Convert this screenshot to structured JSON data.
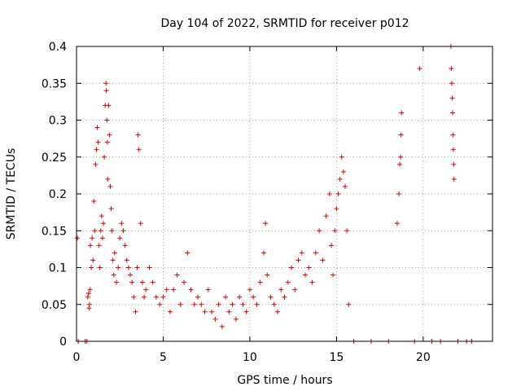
{
  "chart_data": {
    "type": "scatter",
    "title": "Day 104 of 2022, SRMTID for receiver p012",
    "xlabel": "GPS time / hours",
    "ylabel": "SRMTID / TECUs",
    "xlim": [
      0,
      24
    ],
    "ylim": [
      0,
      0.4
    ],
    "grid": true,
    "marker": "+",
    "color": "#e00000",
    "x_ticks": [
      0,
      5,
      10,
      15,
      20
    ],
    "x_tick_labels": [
      "0",
      "5",
      "10",
      "15",
      "20"
    ],
    "y_ticks": [
      0,
      0.05,
      0.1,
      0.15,
      0.2,
      0.25,
      0.3,
      0.35,
      0.4
    ],
    "y_tick_labels": [
      "0",
      "0.05",
      "0.1",
      "0.15",
      "0.2",
      "0.25",
      "0.3",
      "0.35",
      "0.4"
    ],
    "series": [
      {
        "name": "SRMTID",
        "points": [
          [
            0.05,
            0.14
          ],
          [
            0.1,
            0
          ],
          [
            0.5,
            0
          ],
          [
            0.6,
            0
          ],
          [
            0.65,
            0.06
          ],
          [
            0.7,
            0.065
          ],
          [
            0.72,
            0.045
          ],
          [
            0.75,
            0.05
          ],
          [
            0.78,
            0.07
          ],
          [
            0.8,
            0.13
          ],
          [
            0.85,
            0.1
          ],
          [
            0.9,
            0.14
          ],
          [
            0.95,
            0.11
          ],
          [
            1.0,
            0.19
          ],
          [
            1.05,
            0.15
          ],
          [
            1.1,
            0.24
          ],
          [
            1.15,
            0.26
          ],
          [
            1.2,
            0.29
          ],
          [
            1.25,
            0.27
          ],
          [
            1.3,
            0.13
          ],
          [
            1.35,
            0.1
          ],
          [
            1.4,
            0.15
          ],
          [
            1.45,
            0.17
          ],
          [
            1.5,
            0.14
          ],
          [
            1.55,
            0.16
          ],
          [
            1.6,
            0.25
          ],
          [
            1.65,
            0.32
          ],
          [
            1.7,
            0.35
          ],
          [
            1.72,
            0.34
          ],
          [
            1.75,
            0.3
          ],
          [
            1.78,
            0.27
          ],
          [
            1.8,
            0.22
          ],
          [
            1.85,
            0.32
          ],
          [
            1.9,
            0.28
          ],
          [
            1.95,
            0.21
          ],
          [
            2.0,
            0.18
          ],
          [
            2.05,
            0.15
          ],
          [
            2.1,
            0.11
          ],
          [
            2.15,
            0.09
          ],
          [
            2.2,
            0.12
          ],
          [
            2.3,
            0.08
          ],
          [
            2.4,
            0.1
          ],
          [
            2.5,
            0.14
          ],
          [
            2.6,
            0.16
          ],
          [
            2.7,
            0.15
          ],
          [
            2.8,
            0.13
          ],
          [
            2.9,
            0.11
          ],
          [
            3.0,
            0.1
          ],
          [
            3.1,
            0.09
          ],
          [
            3.2,
            0.08
          ],
          [
            3.3,
            0.06
          ],
          [
            3.4,
            0.04
          ],
          [
            3.5,
            0.1
          ],
          [
            3.55,
            0.28
          ],
          [
            3.6,
            0.26
          ],
          [
            3.7,
            0.16
          ],
          [
            3.8,
            0.08
          ],
          [
            3.9,
            0.06
          ],
          [
            4.0,
            0.07
          ],
          [
            4.2,
            0.1
          ],
          [
            4.4,
            0.08
          ],
          [
            4.6,
            0.06
          ],
          [
            4.8,
            0.05
          ],
          [
            5.0,
            0.06
          ],
          [
            5.2,
            0.07
          ],
          [
            5.4,
            0.04
          ],
          [
            5.6,
            0.07
          ],
          [
            5.8,
            0.09
          ],
          [
            6.0,
            0.05
          ],
          [
            6.2,
            0.08
          ],
          [
            6.4,
            0.12
          ],
          [
            6.6,
            0.07
          ],
          [
            6.8,
            0.05
          ],
          [
            7.0,
            0.06
          ],
          [
            7.2,
            0.05
          ],
          [
            7.4,
            0.04
          ],
          [
            7.6,
            0.07
          ],
          [
            7.8,
            0.04
          ],
          [
            8.0,
            0.03
          ],
          [
            8.2,
            0.05
          ],
          [
            8.4,
            0.02
          ],
          [
            8.6,
            0.06
          ],
          [
            8.8,
            0.04
          ],
          [
            9.0,
            0.05
          ],
          [
            9.2,
            0.03
          ],
          [
            9.4,
            0.06
          ],
          [
            9.6,
            0.05
          ],
          [
            9.8,
            0.04
          ],
          [
            10.0,
            0.07
          ],
          [
            10.2,
            0.06
          ],
          [
            10.4,
            0.05
          ],
          [
            10.6,
            0.08
          ],
          [
            10.8,
            0.12
          ],
          [
            10.9,
            0.16
          ],
          [
            11.0,
            0.09
          ],
          [
            11.2,
            0.06
          ],
          [
            11.4,
            0.05
          ],
          [
            11.6,
            0.04
          ],
          [
            11.8,
            0.07
          ],
          [
            12.0,
            0.06
          ],
          [
            12.2,
            0.08
          ],
          [
            12.4,
            0.1
          ],
          [
            12.6,
            0.07
          ],
          [
            12.8,
            0.11
          ],
          [
            13.0,
            0.12
          ],
          [
            13.2,
            0.09
          ],
          [
            13.4,
            0.1
          ],
          [
            13.6,
            0.08
          ],
          [
            13.8,
            0.12
          ],
          [
            14.0,
            0.15
          ],
          [
            14.2,
            0.11
          ],
          [
            14.4,
            0.17
          ],
          [
            14.6,
            0.2
          ],
          [
            14.7,
            0.13
          ],
          [
            14.8,
            0.09
          ],
          [
            14.9,
            0.15
          ],
          [
            15.0,
            0.18
          ],
          [
            15.1,
            0.2
          ],
          [
            15.2,
            0.22
          ],
          [
            15.3,
            0.25
          ],
          [
            15.4,
            0.23
          ],
          [
            15.5,
            0.21
          ],
          [
            15.6,
            0.15
          ],
          [
            15.7,
            0.05
          ],
          [
            16.0,
            0
          ],
          [
            17.0,
            0
          ],
          [
            18.0,
            0
          ],
          [
            18.6,
            0.2
          ],
          [
            18.65,
            0.24
          ],
          [
            18.7,
            0.25
          ],
          [
            18.72,
            0.28
          ],
          [
            18.75,
            0.31
          ],
          [
            18.5,
            0.16
          ],
          [
            19.8,
            0.37
          ],
          [
            21.6,
            0.4
          ],
          [
            21.62,
            0.37
          ],
          [
            21.65,
            0.35
          ],
          [
            21.68,
            0.33
          ],
          [
            21.7,
            0.31
          ],
          [
            21.72,
            0.28
          ],
          [
            21.74,
            0.26
          ],
          [
            21.76,
            0.24
          ],
          [
            21.78,
            0.22
          ],
          [
            19.5,
            0
          ],
          [
            20.5,
            0
          ],
          [
            21.0,
            0
          ],
          [
            22.0,
            0
          ],
          [
            22.5,
            0
          ],
          [
            22.8,
            0
          ]
        ]
      }
    ]
  }
}
